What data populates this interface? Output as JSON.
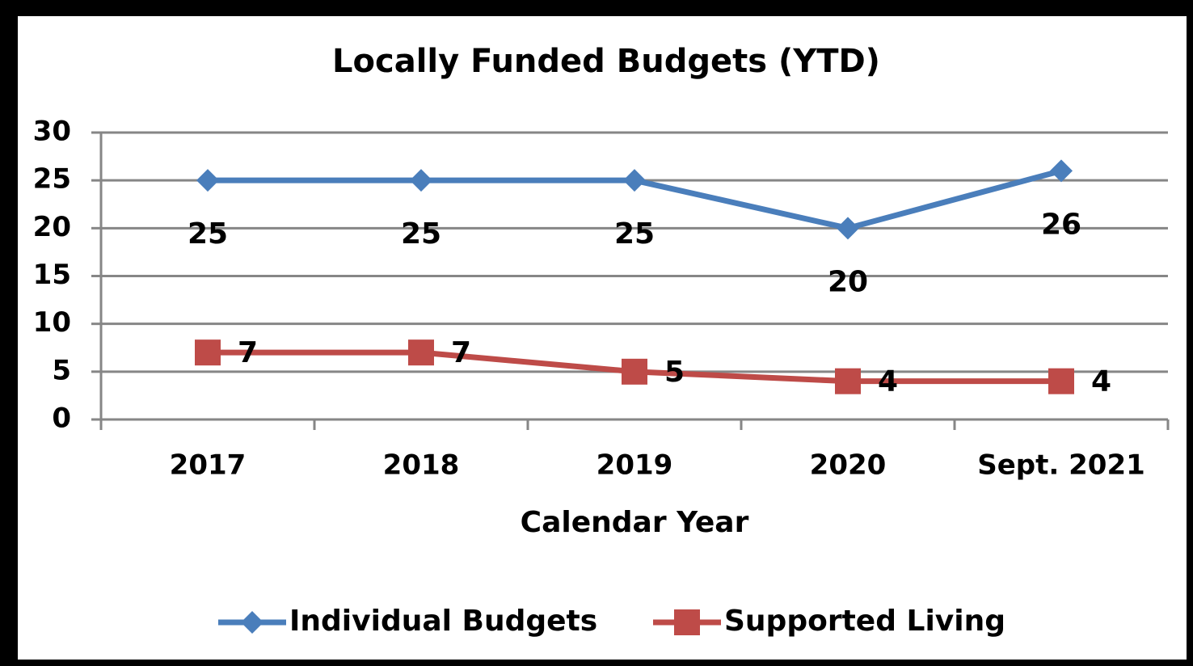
{
  "chart_data": {
    "type": "line",
    "title": "Locally Funded Budgets (YTD)",
    "x_label": "Calendar Year",
    "categories": [
      "2017",
      "2018",
      "2019",
      "2020",
      "Sept. 2021"
    ],
    "series": [
      {
        "name": "Individual Budgets",
        "color": "#4a7ebb",
        "marker": "diamond",
        "values": [
          25,
          25,
          25,
          20,
          26
        ]
      },
      {
        "name": "Supported Living",
        "color": "#be4b48",
        "marker": "square",
        "values": [
          7,
          7,
          5,
          4,
          4
        ]
      }
    ],
    "ylim": [
      0,
      30
    ],
    "yticks": [
      0,
      5,
      10,
      15,
      20,
      25,
      30
    ],
    "grid": true,
    "legend": "bottom"
  }
}
